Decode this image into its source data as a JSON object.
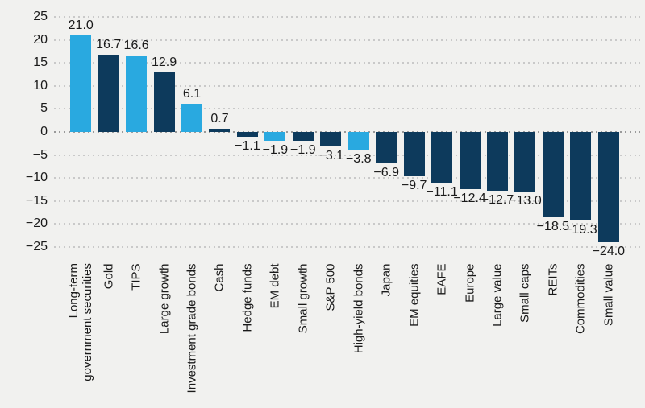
{
  "palette": {
    "light_blue": "#29a9e0",
    "dark_navy": "#0d3a5c",
    "background": "#f1f1ef",
    "gridline": "#c9c9c9",
    "zero_line": "#9a9a9a",
    "text": "#1a1a1a"
  },
  "chart_data": {
    "type": "bar",
    "title": "",
    "xlabel": "",
    "ylabel": "",
    "ylim": [
      -25,
      25
    ],
    "ytick_values": [
      25,
      20,
      15,
      10,
      5,
      0,
      -5,
      -10,
      -15,
      -20,
      -25
    ],
    "ytick_labels": [
      "25",
      "20",
      "15",
      "10",
      "5",
      "0",
      "−5",
      "−10",
      "−15",
      "−20",
      "−25"
    ],
    "grid": "dotted-horizontal",
    "legend": "none",
    "categories": [
      "Long-term\ngovernment securities",
      "Gold",
      "TIPS",
      "Large growth",
      "Investment grade bonds",
      "Cash",
      "Hedge funds",
      "EM debt",
      "Small growth",
      "S&P 500",
      "High-yield bonds",
      "Japan",
      "EM equities",
      "EAFE",
      "Europe",
      "Large value",
      "Small caps",
      "REITs",
      "Commodities",
      "Small value"
    ],
    "values": [
      21.0,
      16.7,
      16.6,
      12.9,
      6.1,
      0.7,
      -1.1,
      -1.9,
      -1.9,
      -3.1,
      -3.8,
      -6.9,
      -9.7,
      -11.1,
      -12.4,
      -12.7,
      -13.0,
      -18.5,
      -19.3,
      -24.0
    ],
    "value_labels": [
      "21.0",
      "16.7",
      "16.6",
      "12.9",
      "6.1",
      "0.7",
      "−1.1",
      "−1.9",
      "−1.9",
      "−3.1",
      "−3.8",
      "−6.9",
      "−9.7",
      "−11.1",
      "−12.4",
      "−12.7",
      "−13.0",
      "−18.5",
      "−19.3",
      "−24.0"
    ],
    "bar_colors": [
      "#29a9e0",
      "#0d3a5c",
      "#29a9e0",
      "#0d3a5c",
      "#29a9e0",
      "#0d3a5c",
      "#0d3a5c",
      "#29a9e0",
      "#0d3a5c",
      "#0d3a5c",
      "#29a9e0",
      "#0d3a5c",
      "#0d3a5c",
      "#0d3a5c",
      "#0d3a5c",
      "#0d3a5c",
      "#0d3a5c",
      "#0d3a5c",
      "#0d3a5c",
      "#0d3a5c"
    ]
  }
}
